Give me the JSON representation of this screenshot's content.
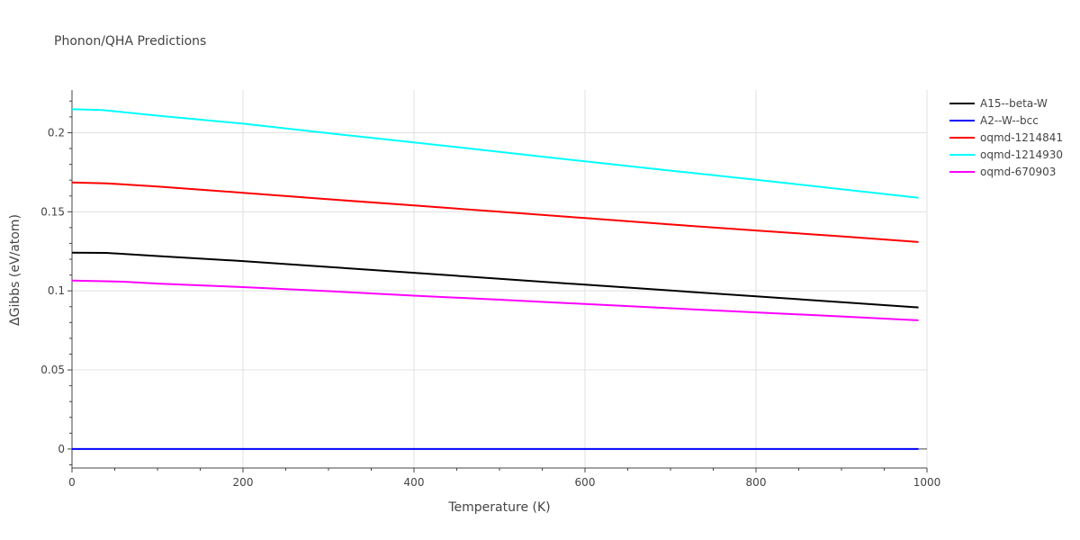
{
  "chart_data": {
    "type": "line",
    "title": "Phonon/QHA Predictions",
    "xlabel": "Temperature (K)",
    "ylabel": "ΔGibbs (eV/atom)",
    "xlim": [
      0,
      1000
    ],
    "ylim": [
      -0.012,
      0.227
    ],
    "x_ticks": [
      0,
      200,
      400,
      600,
      800,
      1000
    ],
    "x_tick_labels": [
      "0",
      "200",
      "400",
      "600",
      "800",
      "1000"
    ],
    "y_ticks": [
      0,
      0.05,
      0.1,
      0.15,
      0.2
    ],
    "y_tick_labels": [
      "0",
      "0.05",
      "0.1",
      "0.15",
      "0.2"
    ],
    "grid": true,
    "legend_position": "right",
    "series": [
      {
        "name": "A15--beta-W",
        "color": "#000000",
        "x": [
          0,
          40,
          100,
          200,
          300,
          400,
          500,
          600,
          700,
          800,
          900,
          990
        ],
        "y": [
          0.1241,
          0.124,
          0.122,
          0.1188,
          0.1151,
          0.1114,
          0.1076,
          0.1039,
          0.1002,
          0.0965,
          0.0929,
          0.0895
        ]
      },
      {
        "name": "A2--W--bcc",
        "color": "#0000ff",
        "x": [
          0,
          200,
          400,
          600,
          800,
          990
        ],
        "y": [
          0,
          0,
          0,
          0,
          0,
          0
        ]
      },
      {
        "name": "oqmd-1214841",
        "color": "#ff0000",
        "x": [
          0,
          40,
          100,
          200,
          300,
          400,
          500,
          600,
          700,
          800,
          900,
          990
        ],
        "y": [
          0.1685,
          0.168,
          0.166,
          0.162,
          0.1579,
          0.154,
          0.15,
          0.146,
          0.142,
          0.1382,
          0.1345,
          0.1309
        ]
      },
      {
        "name": "oqmd-1214930",
        "color": "#00ffff",
        "x": [
          0,
          35,
          100,
          200,
          300,
          400,
          500,
          600,
          700,
          800,
          900,
          990
        ],
        "y": [
          0.2148,
          0.2143,
          0.2108,
          0.2057,
          0.1997,
          0.1938,
          0.1879,
          0.1819,
          0.176,
          0.1702,
          0.1643,
          0.1588
        ]
      },
      {
        "name": "oqmd-670903",
        "color": "#ff00ff",
        "x": [
          0,
          60,
          100,
          200,
          300,
          400,
          500,
          600,
          700,
          800,
          900,
          990
        ],
        "y": [
          0.1065,
          0.1058,
          0.1046,
          0.1024,
          0.0998,
          0.097,
          0.0944,
          0.0917,
          0.089,
          0.0864,
          0.0838,
          0.0814
        ]
      }
    ]
  }
}
